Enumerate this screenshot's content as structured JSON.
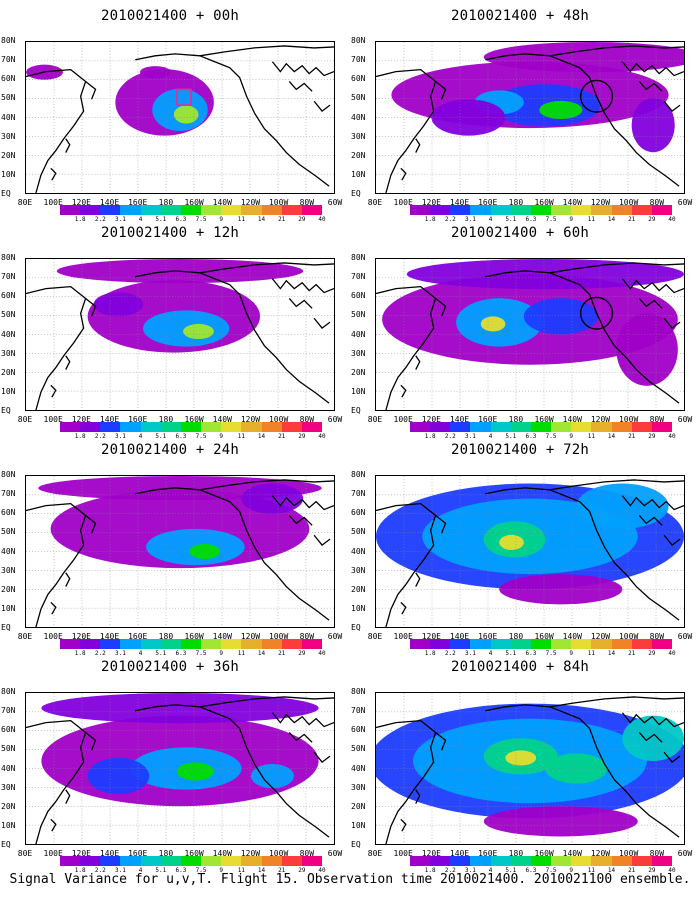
{
  "footer": "Signal Variance for u,v,T. Flight 15. Observation time 2010021400. 2010021100 ensemble.",
  "chart_data": {
    "type": "heatmap",
    "lat_labels": [
      "80N",
      "70N",
      "60N",
      "50N",
      "40N",
      "30N",
      "20N",
      "10N",
      "EQ"
    ],
    "lon_labels": [
      "80E",
      "100E",
      "120E",
      "140E",
      "160E",
      "180",
      "160W",
      "140W",
      "120W",
      "100W",
      "80W",
      "60W"
    ],
    "colorbar": {
      "levels": [
        "1.8",
        "2.2",
        "3.1",
        "4",
        "5.1",
        "6.3",
        "7.5",
        "9",
        "11",
        "14",
        "21",
        "29",
        "40"
      ],
      "colors": [
        "#a000c8",
        "#8200dc",
        "#1e3cff",
        "#00a0ff",
        "#00c8c8",
        "#00d28c",
        "#00dc00",
        "#a0e632",
        "#e6dc32",
        "#e6af2d",
        "#f08228",
        "#fa3c3c",
        "#f00082"
      ]
    },
    "panels": [
      {
        "title": "2010021400 + 00h",
        "observation_marker": "red-rectangle",
        "blobs": [
          [
            0.45,
            0.4,
            0.16,
            0.22,
            0
          ],
          [
            0.5,
            0.45,
            0.09,
            0.14,
            3
          ],
          [
            0.52,
            0.48,
            0.04,
            0.06,
            7
          ],
          [
            0.06,
            0.2,
            0.06,
            0.05,
            0
          ],
          [
            0.42,
            0.2,
            0.05,
            0.04,
            0
          ]
        ]
      },
      {
        "title": "2010021400 + 48h",
        "observation_marker": "circles",
        "blobs": [
          [
            0.5,
            0.35,
            0.45,
            0.22,
            0
          ],
          [
            0.7,
            0.1,
            0.35,
            0.1,
            0
          ],
          [
            0.55,
            0.42,
            0.18,
            0.14,
            2
          ],
          [
            0.6,
            0.45,
            0.07,
            0.06,
            6
          ],
          [
            0.4,
            0.4,
            0.08,
            0.08,
            3
          ],
          [
            0.9,
            0.55,
            0.07,
            0.18,
            1
          ],
          [
            0.3,
            0.5,
            0.12,
            0.12,
            1
          ]
        ]
      },
      {
        "title": "2010021400 + 12h",
        "observation_marker": "none",
        "blobs": [
          [
            0.48,
            0.38,
            0.28,
            0.24,
            0
          ],
          [
            0.52,
            0.46,
            0.14,
            0.12,
            3
          ],
          [
            0.56,
            0.48,
            0.05,
            0.05,
            7
          ],
          [
            0.3,
            0.3,
            0.08,
            0.08,
            1
          ],
          [
            0.5,
            0.08,
            0.4,
            0.08,
            0
          ]
        ]
      },
      {
        "title": "2010021400 + 60h",
        "observation_marker": "circles",
        "blobs": [
          [
            0.5,
            0.4,
            0.48,
            0.3,
            0
          ],
          [
            0.4,
            0.42,
            0.14,
            0.16,
            3
          ],
          [
            0.38,
            0.43,
            0.04,
            0.05,
            8
          ],
          [
            0.6,
            0.38,
            0.12,
            0.12,
            2
          ],
          [
            0.55,
            0.1,
            0.45,
            0.1,
            1
          ],
          [
            0.88,
            0.6,
            0.1,
            0.24,
            0
          ]
        ]
      },
      {
        "title": "2010021400 + 24h",
        "observation_marker": "none",
        "blobs": [
          [
            0.5,
            0.35,
            0.42,
            0.26,
            0
          ],
          [
            0.55,
            0.47,
            0.16,
            0.12,
            3
          ],
          [
            0.58,
            0.5,
            0.05,
            0.05,
            6
          ],
          [
            0.5,
            0.08,
            0.46,
            0.08,
            0
          ],
          [
            0.8,
            0.15,
            0.1,
            0.1,
            1
          ]
        ]
      },
      {
        "title": "2010021400 + 72h",
        "observation_marker": "none",
        "blobs": [
          [
            0.5,
            0.4,
            0.5,
            0.35,
            2
          ],
          [
            0.5,
            0.4,
            0.35,
            0.25,
            3
          ],
          [
            0.45,
            0.42,
            0.1,
            0.12,
            5
          ],
          [
            0.44,
            0.44,
            0.04,
            0.05,
            8
          ],
          [
            0.8,
            0.2,
            0.15,
            0.15,
            3
          ],
          [
            0.6,
            0.75,
            0.2,
            0.1,
            0
          ]
        ]
      },
      {
        "title": "2010021400 + 36h",
        "observation_marker": "none",
        "blobs": [
          [
            0.5,
            0.45,
            0.45,
            0.3,
            0
          ],
          [
            0.52,
            0.5,
            0.18,
            0.14,
            3
          ],
          [
            0.55,
            0.52,
            0.06,
            0.06,
            6
          ],
          [
            0.3,
            0.55,
            0.1,
            0.12,
            2
          ],
          [
            0.5,
            0.1,
            0.45,
            0.1,
            1
          ],
          [
            0.8,
            0.55,
            0.07,
            0.08,
            3
          ]
        ]
      },
      {
        "title": "2010021400 + 84h",
        "observation_marker": "none",
        "blobs": [
          [
            0.5,
            0.45,
            0.52,
            0.38,
            2
          ],
          [
            0.5,
            0.45,
            0.38,
            0.28,
            3
          ],
          [
            0.47,
            0.42,
            0.12,
            0.12,
            5
          ],
          [
            0.47,
            0.43,
            0.05,
            0.05,
            8
          ],
          [
            0.65,
            0.5,
            0.1,
            0.1,
            5
          ],
          [
            0.9,
            0.3,
            0.1,
            0.15,
            4
          ],
          [
            0.6,
            0.85,
            0.25,
            0.1,
            0
          ]
        ]
      }
    ]
  }
}
